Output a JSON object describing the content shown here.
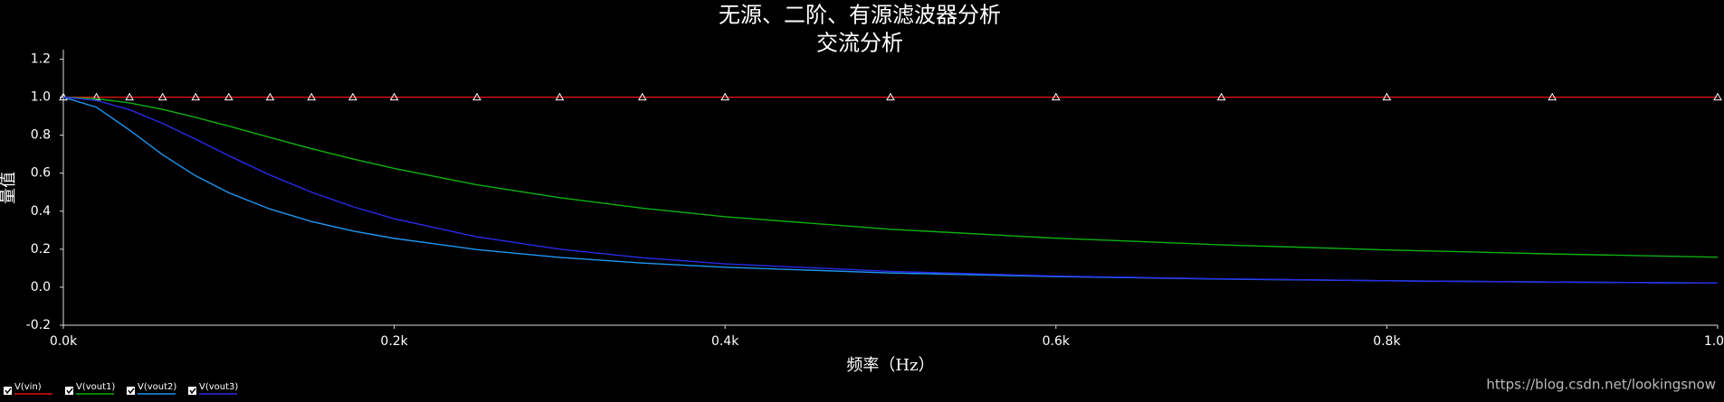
{
  "chart_data": {
    "type": "line",
    "title": "无源、二阶、有源滤波器分析",
    "subtitle": "交流分析",
    "x_label": "频率（Hz）",
    "y_label": "量值",
    "watermark": "https://blog.csdn.net/lookingsnow",
    "x": [
      0,
      20,
      40,
      60,
      80,
      100,
      125,
      150,
      175,
      200,
      250,
      300,
      350,
      400,
      500,
      600,
      700,
      800,
      900,
      1000
    ],
    "series": [
      {
        "name": "V(vin)",
        "color": "#e01010",
        "marker": "triangle",
        "values": [
          1,
          1,
          1,
          1,
          1,
          1,
          1,
          1,
          1,
          1,
          1,
          1,
          1,
          1,
          1,
          1,
          1,
          1,
          1,
          1
        ]
      },
      {
        "name": "V(vout1)",
        "color": "#10b010",
        "values": [
          1,
          0.992,
          0.97,
          0.936,
          0.894,
          0.848,
          0.788,
          0.729,
          0.675,
          0.625,
          0.539,
          0.471,
          0.416,
          0.371,
          0.305,
          0.258,
          0.223,
          0.196,
          0.175,
          0.158
        ]
      },
      {
        "name": "V(vout2)",
        "color": "#1e96f0",
        "values": [
          1,
          0.947,
          0.827,
          0.697,
          0.586,
          0.497,
          0.411,
          0.346,
          0.296,
          0.257,
          0.198,
          0.157,
          0.127,
          0.105,
          0.075,
          0.056,
          0.043,
          0.034,
          0.027,
          0.022
        ]
      },
      {
        "name": "V(vout3)",
        "color": "#2a2ae8",
        "values": [
          1,
          0.983,
          0.934,
          0.862,
          0.779,
          0.692,
          0.59,
          0.5,
          0.424,
          0.36,
          0.265,
          0.2,
          0.155,
          0.123,
          0.083,
          0.059,
          0.044,
          0.034,
          0.027,
          0.022
        ]
      }
    ],
    "xlim": [
      0,
      1000
    ],
    "xticks": [
      {
        "value": 0,
        "label": "0.0k"
      },
      {
        "value": 200,
        "label": "0.2k"
      },
      {
        "value": 400,
        "label": "0.4k"
      },
      {
        "value": 600,
        "label": "0.6k"
      },
      {
        "value": 800,
        "label": "0.8k"
      },
      {
        "value": 1000,
        "label": "1.0k"
      }
    ],
    "ylim": [
      -0.2,
      1.25
    ],
    "yticks": [
      1.2,
      {
        "value": 1,
        "label": "1.0"
      },
      0.8,
      0.6,
      0.4,
      0.2,
      {
        "value": 0,
        "label": "0.0"
      },
      -0.2
    ],
    "grid": false,
    "legend": "bottom-left"
  }
}
